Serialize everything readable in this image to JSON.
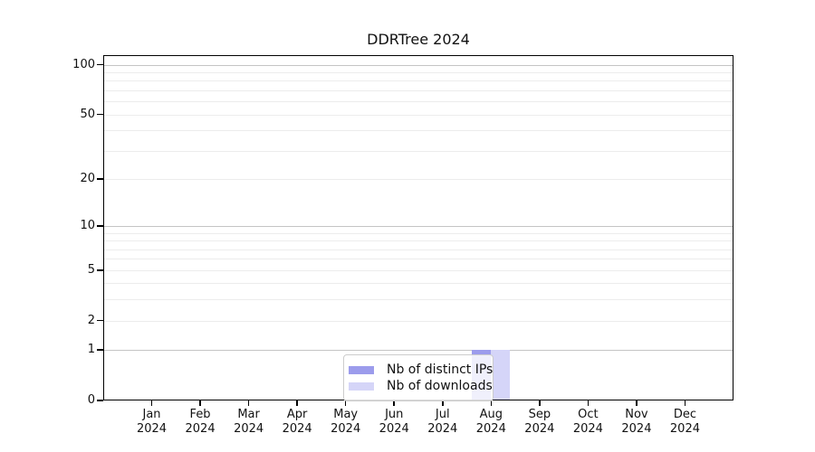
{
  "chart_data": {
    "type": "bar",
    "title": "DDRTree 2024",
    "categories": [
      "Jan 2024",
      "Feb 2024",
      "Mar 2024",
      "Apr 2024",
      "May 2024",
      "Jun 2024",
      "Jul 2024",
      "Aug 2024",
      "Sep 2024",
      "Oct 2024",
      "Nov 2024",
      "Dec 2024"
    ],
    "series": [
      {
        "name": "Nb of distinct IPs",
        "color": "#9c9cec",
        "values": [
          0,
          0,
          0,
          0,
          0,
          0,
          0,
          1,
          0,
          0,
          0,
          0
        ]
      },
      {
        "name": "Nb of downloads",
        "color": "#d5d5f8",
        "values": [
          0,
          0,
          0,
          0,
          0,
          0,
          0,
          1,
          0,
          0,
          0,
          0
        ]
      }
    ],
    "xlabel": "",
    "ylabel": "",
    "y_scale": "log1p",
    "y_ticks": [
      0,
      1,
      2,
      5,
      10,
      20,
      50,
      100
    ],
    "ylim": [
      0,
      114
    ],
    "grid": {
      "major_values": [
        1,
        10,
        100
      ],
      "minor_values": [
        2,
        3,
        4,
        5,
        6,
        7,
        8,
        9,
        20,
        30,
        40,
        50,
        60,
        70,
        80,
        90
      ],
      "major_color": "#c5c5c5",
      "minor_color": "#ececec"
    },
    "legend": {
      "position": "lower center",
      "items": [
        "Nb of distinct IPs",
        "Nb of downloads"
      ]
    },
    "colors": {
      "axis": "#000000",
      "text": "#111111",
      "background": "#ffffff",
      "legend_border": "#cccccc"
    }
  }
}
